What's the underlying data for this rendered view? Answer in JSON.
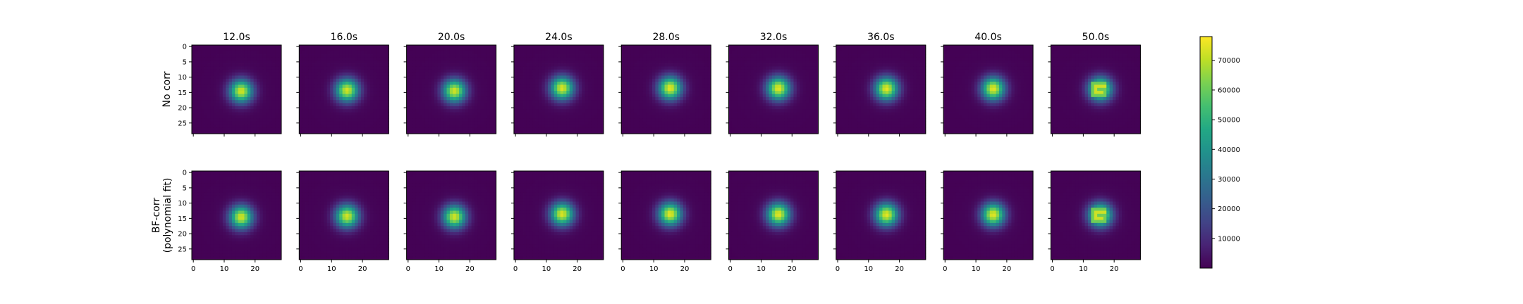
{
  "chart_data": {
    "type": "heatmap",
    "title": "",
    "columns": [
      "12.0s",
      "16.0s",
      "20.0s",
      "24.0s",
      "28.0s",
      "32.0s",
      "36.0s",
      "40.0s",
      "50.0s"
    ],
    "rows": [
      "No corr",
      "BF-corr\n(polynomial fit)"
    ],
    "xlim": [
      0,
      29
    ],
    "ylim": [
      29,
      0
    ],
    "x_ticks": [
      "0",
      "10",
      "20"
    ],
    "y_ticks": [
      "0",
      "5",
      "10",
      "15",
      "20",
      "25"
    ],
    "colormap": "viridis",
    "colorbar": {
      "range": [
        0,
        78000
      ],
      "ticks": [
        "10000",
        "20000",
        "30000",
        "40000",
        "50000",
        "60000",
        "70000"
      ]
    },
    "spot": {
      "centers": [
        [
          15.5,
          14.6
        ],
        [
          15.0,
          14.3
        ],
        [
          15.0,
          14.5
        ],
        [
          15.1,
          13.6
        ],
        [
          15.3,
          13.6
        ],
        [
          15.6,
          13.7
        ],
        [
          15.8,
          13.8
        ],
        [
          15.6,
          13.8
        ],
        [
          15.5,
          13.9
        ]
      ],
      "peaks": [
        72000,
        72000,
        72000,
        73000,
        74000,
        74000,
        74000,
        74000,
        76000
      ],
      "saturated_last_column": true
    }
  }
}
